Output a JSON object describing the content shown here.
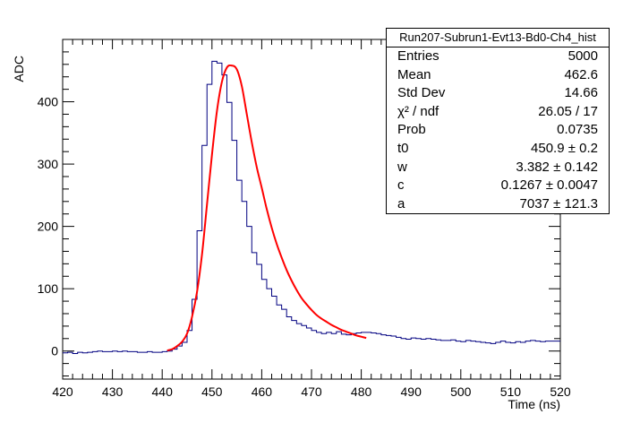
{
  "chart_data": {
    "type": "histogram",
    "title": "Run207-Subrun1-Evt13-Bd0-Ch4_hist",
    "xlabel": "Time (ns)",
    "ylabel": "ADC",
    "xlim": [
      420,
      520
    ],
    "ylim": [
      -45,
      500
    ],
    "x_ticks": [
      420,
      430,
      440,
      450,
      460,
      470,
      480,
      490,
      500,
      510,
      520
    ],
    "y_ticks": [
      0,
      100,
      200,
      300,
      400
    ],
    "grid": false,
    "bin_width": 1,
    "bins": {
      "x_start": [
        420,
        421,
        422,
        423,
        424,
        425,
        426,
        427,
        428,
        429,
        430,
        431,
        432,
        433,
        434,
        435,
        436,
        437,
        438,
        439,
        440,
        441,
        442,
        443,
        444,
        445,
        446,
        447,
        448,
        449,
        450,
        451,
        452,
        453,
        454,
        455,
        456,
        457,
        458,
        459,
        460,
        461,
        462,
        463,
        464,
        465,
        466,
        467,
        468,
        469,
        470,
        471,
        472,
        473,
        474,
        475,
        476,
        477,
        478,
        479,
        480,
        481,
        482,
        483,
        484,
        485,
        486,
        487,
        488,
        489,
        490,
        491,
        492,
        493,
        494,
        495,
        496,
        497,
        498,
        499,
        500,
        501,
        502,
        503,
        504,
        505,
        506,
        507,
        508,
        509,
        510,
        511,
        512,
        513,
        514,
        515,
        516,
        517,
        518,
        519
      ],
      "values": [
        -3,
        -2,
        -4,
        -2,
        -3,
        -2,
        -1,
        0,
        -1,
        -1,
        0,
        -1,
        0,
        -1,
        -1,
        -2,
        -2,
        -1,
        -2,
        -2,
        -1,
        0,
        3,
        8,
        14,
        33,
        83,
        193,
        330,
        428,
        465,
        462,
        443,
        399,
        338,
        274,
        240,
        200,
        158,
        139,
        115,
        100,
        88,
        74,
        67,
        55,
        49,
        44,
        41,
        37,
        33,
        30,
        28,
        30,
        28,
        31,
        27,
        26,
        28,
        29,
        30,
        30,
        29,
        28,
        26,
        25,
        24,
        22,
        20,
        19,
        21,
        20,
        19,
        20,
        19,
        18,
        17,
        17,
        18,
        16,
        15,
        17,
        16,
        15,
        14,
        13,
        12,
        14,
        16,
        14,
        13,
        15,
        14,
        16,
        17,
        16,
        15,
        16,
        16,
        16
      ]
    },
    "series": [
      {
        "name": "fit",
        "color": "#ff0000",
        "x": [
          441,
          442,
          443,
          444,
          445,
          446,
          447,
          448,
          449,
          450,
          451,
          452,
          453,
          454,
          455,
          456,
          457,
          458,
          459,
          460,
          461,
          462,
          463,
          464,
          465,
          466,
          467,
          468,
          469,
          470,
          471,
          472,
          473,
          474,
          475,
          476,
          477,
          478,
          479,
          480,
          481
        ],
        "values": [
          1,
          3,
          8,
          15,
          28,
          55,
          95,
          155,
          235,
          315,
          385,
          432,
          455,
          458,
          452,
          425,
          380,
          335,
          295,
          262,
          228,
          198,
          172,
          150,
          130,
          113,
          98,
          85,
          75,
          66,
          58,
          52,
          47,
          42,
          38,
          34,
          31,
          28,
          25,
          23,
          21
        ]
      }
    ],
    "line_colors": {
      "histogram": "#000080",
      "fit": "#ff0000"
    },
    "stats_box": {
      "title": "Run207-Subrun1-Evt13-Bd0-Ch4_hist",
      "rows": [
        {
          "label": "Entries",
          "value": "5000"
        },
        {
          "label": "Mean",
          "value": "462.6"
        },
        {
          "label": "Std Dev",
          "value": "14.66"
        },
        {
          "label": "χ² / ndf",
          "value": "26.05 / 17"
        },
        {
          "label": "Prob",
          "value": "0.0735"
        },
        {
          "label": "t0",
          "value": "450.9  ± 0.2"
        },
        {
          "label": "w",
          "value": "3.382  ± 0.142"
        },
        {
          "label": "c",
          "value": "0.1267  ± 0.0047"
        },
        {
          "label": "a",
          "value": "7037  ± 121.3"
        }
      ]
    }
  }
}
